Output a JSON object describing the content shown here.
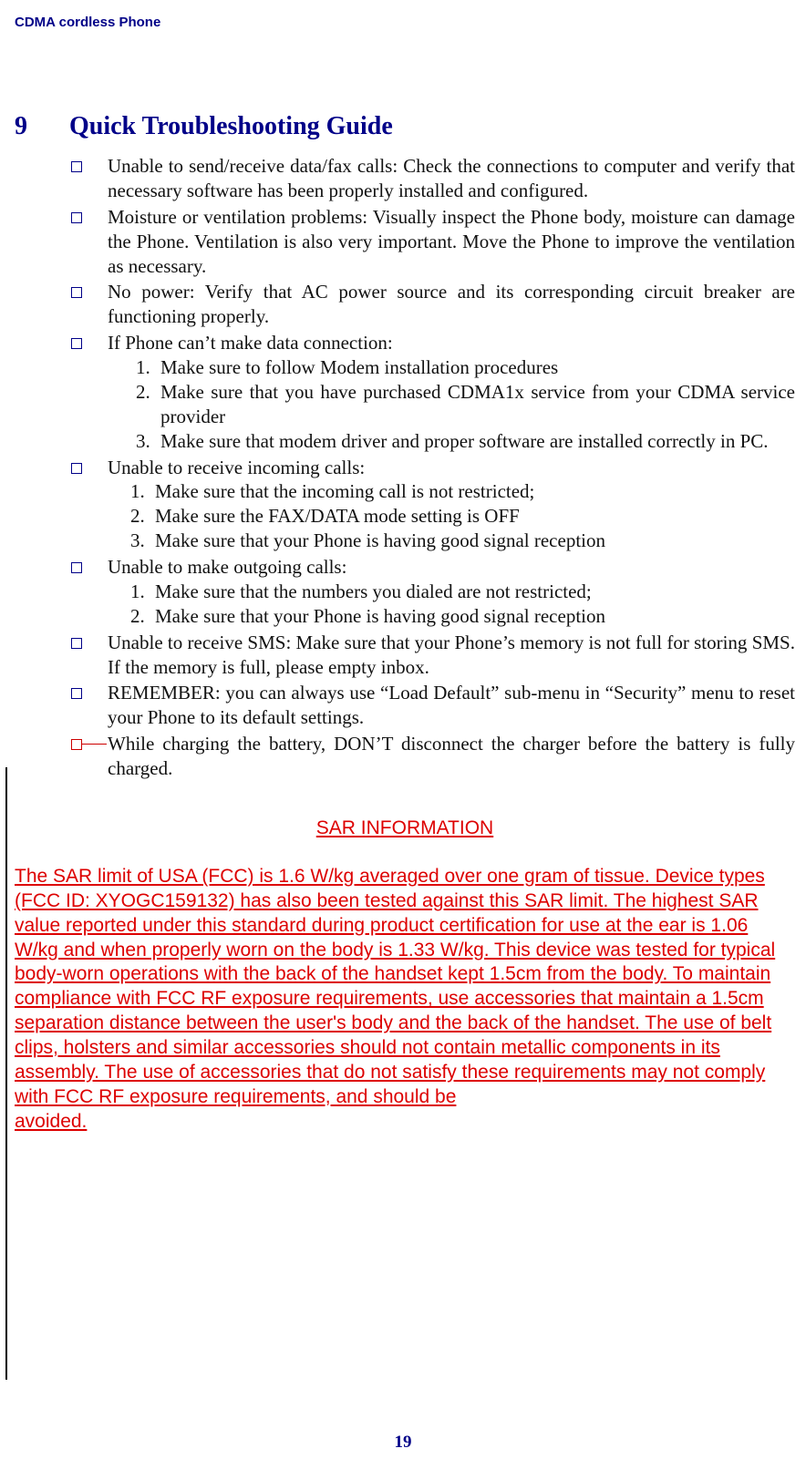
{
  "header": "CDMA cordless Phone",
  "section": {
    "number": "9",
    "title": "Quick Troubleshooting Guide"
  },
  "items": [
    {
      "text": "Unable to send/receive data/fax calls:  Check the connections to computer and verify that necessary software has been properly installed and configured."
    },
    {
      "text": "Moisture or ventilation problems: Visually inspect the Phone body, moisture can damage the Phone. Ventilation is also very important. Move the Phone to improve the ventilation as necessary."
    },
    {
      "text": "No power: Verify that AC power source and its corresponding circuit breaker are functioning properly."
    },
    {
      "text": "If  Phone can’t make data connection:",
      "sub": [
        "Make sure to follow Modem installation procedures",
        "Make sure that you have purchased CDMA1x service from your CDMA service provider",
        "Make sure that modem driver and proper software are installed correctly in PC."
      ]
    },
    {
      "text": "Unable to receive incoming calls:",
      "sub": [
        "Make sure that the incoming call is not restricted;",
        "Make sure the FAX/DATA mode setting is OFF",
        "Make sure that your Phone is having good signal reception"
      ],
      "sub_shifted": true
    },
    {
      "text": "Unable to make outgoing calls:",
      "sub": [
        "Make sure that the numbers you dialed  are  not restricted;",
        "Make sure that your Phone is having good signal reception"
      ],
      "sub_shifted": true
    },
    {
      "text": "Unable to receive SMS: Make sure that your Phone’s memory is not full for storing SMS. If the memory is full, please empty inbox."
    },
    {
      "text": "REMEMBER: you can always use “Load Default” sub-menu in “Security” menu to reset your Phone to its default settings."
    },
    {
      "text": "While charging the battery, DON’T disconnect the charger before the battery is fully charged.",
      "strike": true
    }
  ],
  "sar": {
    "title": "SAR INFORMATION",
    "body": "The SAR limit of USA (FCC) is 1.6 W/kg averaged over one gram of tissue. Device types  (FCC ID: XYOGC159132) has also been tested against this SAR limit. The highest SAR value reported under this standard during product certification for use at the ear is 1.06 W/kg and when properly worn on the body is 1.33 W/kg. This device was tested for typical body-worn operations with the back of the handset kept 1.5cm from the body. To maintain compliance with FCC RF exposure requirements, use accessories that maintain a 1.5cm separation distance between the user's body and the back of the handset. The use of belt clips, holsters and similar accessories should not contain metallic components in its assembly. The use of accessories that do not satisfy these requirements may not comply with FCC RF exposure requirements, and should be",
    "body_last": "avoided."
  },
  "page_number": "19"
}
